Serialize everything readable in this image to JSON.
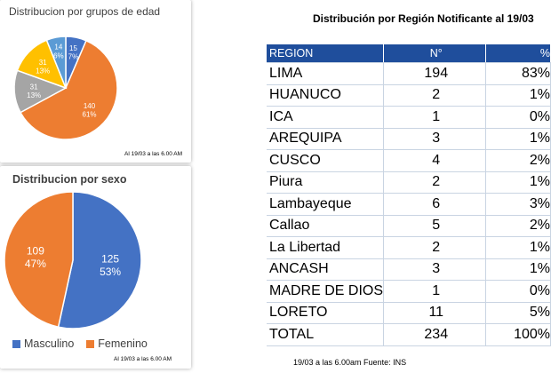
{
  "age_panel": {
    "title": "Distribucion por grupos de edad",
    "note": "Al 19/03 a las 6.00 AM"
  },
  "sex_panel": {
    "title": "Distribucion por sexo",
    "note": "Al 19/03 a las 6.00 AM"
  },
  "table_title": "Distribución por Región Notificante al 19/03",
  "table": {
    "headers": [
      "REGION",
      "N°",
      "%"
    ],
    "rows": [
      [
        "LIMA",
        "194",
        "83%"
      ],
      [
        "HUANUCO",
        "2",
        "1%"
      ],
      [
        "ICA",
        "1",
        "0%"
      ],
      [
        "AREQUIPA",
        "3",
        "1%"
      ],
      [
        "CUSCO",
        "4",
        "2%"
      ],
      [
        "Piura",
        "2",
        "1%"
      ],
      [
        "Lambayeque",
        "6",
        "3%"
      ],
      [
        "Callao",
        "5",
        "2%"
      ],
      [
        "La Libertad",
        "2",
        "1%"
      ],
      [
        "ANCASH",
        "3",
        "1%"
      ],
      [
        "MADRE DE DIOS",
        "1",
        "0%"
      ],
      [
        "LORETO",
        "11",
        "5%"
      ],
      [
        "TOTAL",
        "234",
        "100%"
      ]
    ]
  },
  "source": "19/03 a las 6.00am Fuente: INS",
  "chart_data": [
    {
      "type": "pie",
      "title": "Distribucion por grupos de edad",
      "slices": [
        {
          "value": 15,
          "pct": "7%",
          "color": "#4472c4"
        },
        {
          "value": 140,
          "pct": "61%",
          "color": "#ed7d31"
        },
        {
          "value": 31,
          "pct": "13%",
          "color": "#a5a5a5"
        },
        {
          "value": 31,
          "pct": "13%",
          "color": "#ffc000"
        },
        {
          "value": 14,
          "pct": "6%",
          "color": "#5b9bd5"
        }
      ]
    },
    {
      "type": "pie",
      "title": "Distribucion por sexo",
      "slices": [
        {
          "label": "Masculino",
          "value": 125,
          "pct": "53%",
          "color": "#4472c4"
        },
        {
          "label": "Femenino",
          "value": 109,
          "pct": "47%",
          "color": "#ed7d31"
        }
      ],
      "legend": [
        "Masculino",
        "Femenino"
      ]
    }
  ]
}
